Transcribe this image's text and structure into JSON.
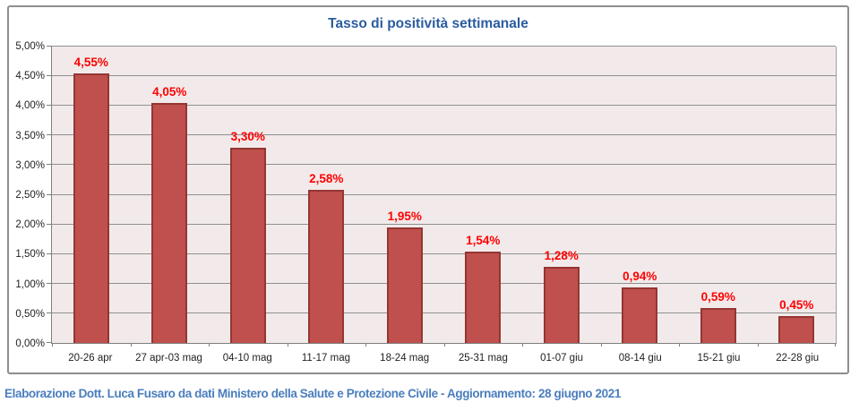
{
  "header": {
    "title": "Tasso di positività settimanale"
  },
  "footer": {
    "credit": "Elaborazione Dott. Luca Fusaro da dati Ministero della Salute e Protezione Civile - Aggiornamento: 28 giugno 2021"
  },
  "colors": {
    "title_blue": "#2a5ca0",
    "footer_blue": "#4a7ebe",
    "bar_fill": "#c0504d",
    "bar_border": "#943634",
    "value_label_red": "#ff0000",
    "plot_background": "#f2eaea",
    "gridline_gray": "#8f8f8f",
    "axis_gray": "#7f7f7f",
    "tick_text": "#1f1f1f"
  },
  "chart_data": {
    "type": "bar",
    "title": "Tasso di positività settimanale",
    "categories": [
      "20-26 apr",
      "27 apr-03 mag",
      "04-10 mag",
      "11-17 mag",
      "18-24 mag",
      "25-31 mag",
      "01-07 giu",
      "08-14 giu",
      "15-21 giu",
      "22-28 giu"
    ],
    "values": [
      4.55,
      4.05,
      3.3,
      2.58,
      1.95,
      1.54,
      1.28,
      0.94,
      0.59,
      0.45
    ],
    "value_labels": [
      "4,55%",
      "4,05%",
      "3,30%",
      "2,58%",
      "1,95%",
      "1,54%",
      "1,28%",
      "0,94%",
      "0,59%",
      "0,45%"
    ],
    "y_tick_labels": [
      "0,00%",
      "0,50%",
      "1,00%",
      "1,50%",
      "2,00%",
      "2,50%",
      "3,00%",
      "3,50%",
      "4,00%",
      "4,50%",
      "5,00%"
    ],
    "xlabel": "",
    "ylabel": "",
    "ylim": [
      0,
      5
    ],
    "y_step": 0.5,
    "grid": true,
    "legend": "none",
    "bar_gap_ratio": 0.54
  }
}
